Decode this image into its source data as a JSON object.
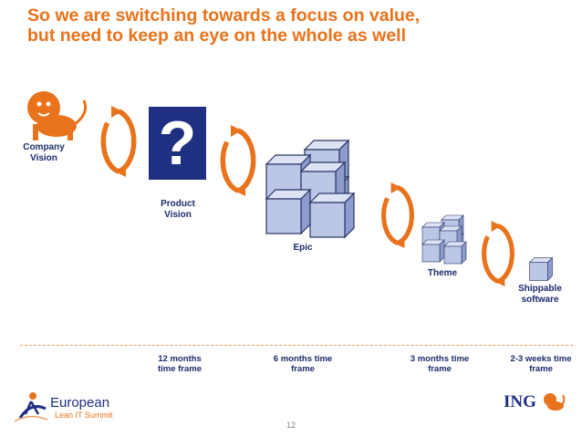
{
  "title": {
    "line1": "So we are switching towards a focus on value,",
    "line2": "but need to keep an eye on the whole as well"
  },
  "stages": {
    "company_vision": {
      "line1": "Company",
      "line2": "Vision"
    },
    "product_vision": {
      "line1": "Product",
      "line2": "Vision",
      "symbol": "?"
    },
    "epic": "Epic",
    "theme": "Theme",
    "shippable": {
      "line1": "Shippable",
      "line2": "software"
    }
  },
  "timeframes": [
    {
      "line1": "12 months",
      "line2": "time frame"
    },
    {
      "line1": "6 months time",
      "line2": "frame"
    },
    {
      "line1": "3 months time",
      "line2": "frame"
    },
    {
      "line1": "2-3 weeks time",
      "line2": "frame"
    }
  ],
  "footer": {
    "page_number": "12",
    "logo_left_line1": "European",
    "logo_left_line2": "Lean IT Summit",
    "logo_right": "ING"
  },
  "colors": {
    "title": "#e8731c",
    "label": "#1a2b6d",
    "arrow": "#e8731c",
    "cube_face": "#bcc6e6",
    "question_box": "#1f2f82"
  },
  "icons": [
    "lion-icon",
    "cycle-arrow-icon",
    "cube-icon",
    "ing-lion-icon",
    "runner-icon"
  ]
}
